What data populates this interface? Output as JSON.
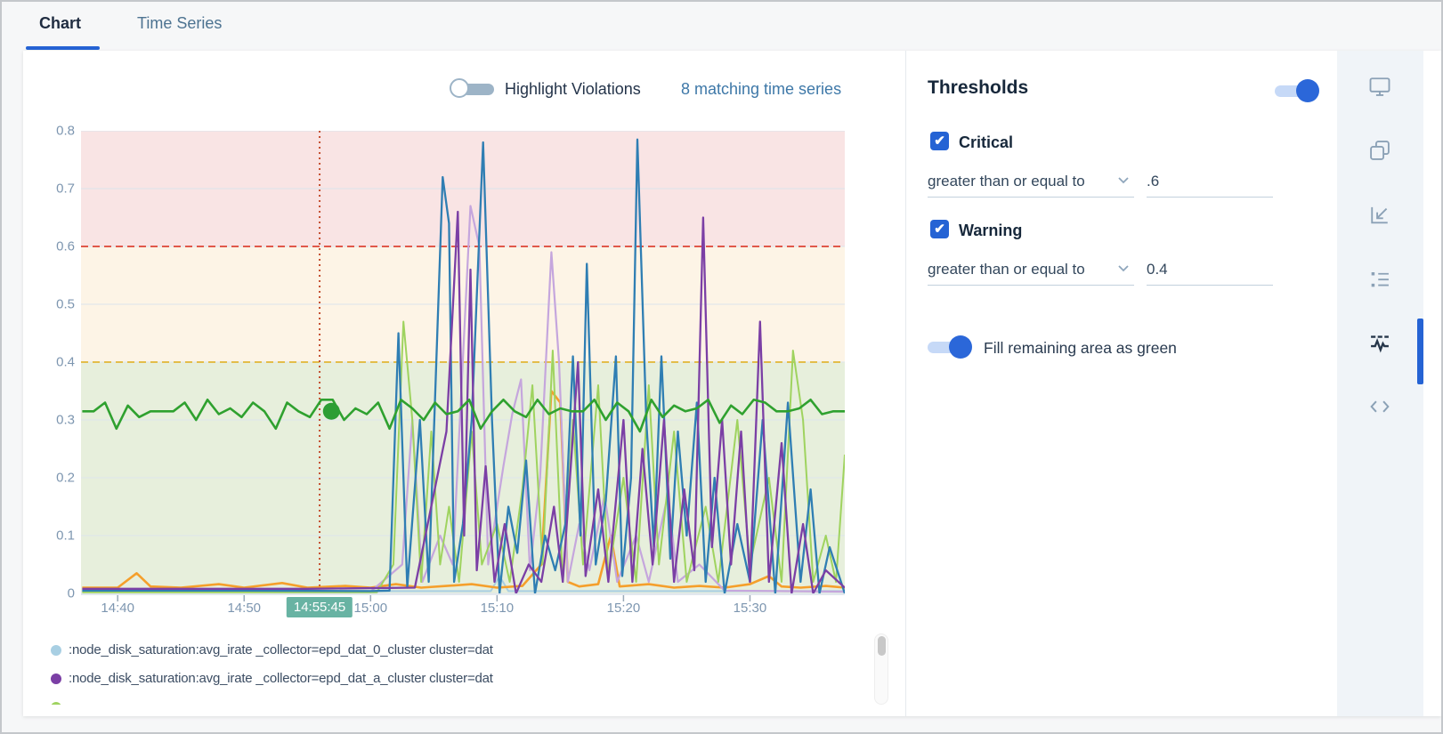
{
  "tabs": {
    "chart": "Chart",
    "time_series": "Time Series"
  },
  "chart_header": {
    "highlight_toggle_label": "Highlight Violations",
    "highlight_toggle_state": "off",
    "matching_link": "8 matching time series"
  },
  "thresholds": {
    "title": "Thresholds",
    "enabled": true,
    "critical": {
      "checked": true,
      "label": "Critical",
      "operator": "greater than or equal to",
      "value": ".6"
    },
    "warning": {
      "checked": true,
      "label": "Warning",
      "operator": "greater than or equal to",
      "value": "0.4"
    },
    "fill_label": "Fill remaining area as green",
    "fill_enabled": true,
    "accent_color": "#2563d4"
  },
  "legend": {
    "items": [
      {
        "label": ":node_disk_saturation:avg_irate _collector=epd_dat_0_cluster cluster=dat",
        "color": "#a8cfe3"
      },
      {
        "label": ":node_disk_saturation:avg_irate _collector=epd_dat_a_cluster cluster=dat",
        "color": "#7b3fa5"
      },
      {
        "label": "",
        "color": "#9fd35f"
      }
    ]
  },
  "sidebar_icons": [
    {
      "name": "monitor-icon",
      "active": false
    },
    {
      "name": "overlap-panels-icon",
      "active": false
    },
    {
      "name": "axes-icon",
      "active": false
    },
    {
      "name": "list-icon",
      "active": false
    },
    {
      "name": "threshold-waveform-icon",
      "active": true
    },
    {
      "name": "code-icon",
      "active": false
    }
  ],
  "chart_data": {
    "type": "line",
    "ylim": [
      0,
      0.8
    ],
    "y_ticks": [
      "0.8",
      "0.7",
      "0.6",
      "0.5",
      "0.4",
      "0.3",
      "0.2",
      "0.1",
      "0"
    ],
    "x_range_min": [
      -2.9,
      57.5
    ],
    "x_axis": {
      "ticks": [
        {
          "label": "14:40",
          "min": 0
        },
        {
          "label": "14:50",
          "min": 10
        },
        {
          "label": "15:00",
          "min": 20
        },
        {
          "label": "15:10",
          "min": 30
        },
        {
          "label": "15:20",
          "min": 40
        },
        {
          "label": "15:30",
          "min": 50
        }
      ],
      "cursor": {
        "label": "14:55:45",
        "min": 15.97,
        "line_color": "#c44f30"
      }
    },
    "grid_color": "#dce5ec",
    "bands": [
      {
        "name": "critical",
        "from": 0.6,
        "to": 0.8,
        "color": "#f9e4e4"
      },
      {
        "name": "warning",
        "from": 0.4,
        "to": 0.6,
        "color": "#fdf4e6"
      },
      {
        "name": "ok",
        "from": 0.0,
        "to": 0.4,
        "color": "#e7efdc"
      }
    ],
    "threshold_lines": [
      {
        "value": 0.6,
        "color": "#e0584a"
      },
      {
        "value": 0.4,
        "color": "#e3bd4a"
      }
    ],
    "marker": {
      "min": 16.9,
      "value": 0.315,
      "color": "#2d9e34",
      "r": 9.5
    },
    "series": [
      {
        "name": "lightblue",
        "color": "#a8cfe3",
        "width": 2,
        "points": [
          [
            -2.8,
            0.004
          ],
          [
            29.5,
            0.004
          ],
          [
            30.2,
            0.03
          ],
          [
            30.9,
            0.004
          ],
          [
            57.5,
            0.004
          ]
        ]
      },
      {
        "name": "orange",
        "color": "#f59f2b",
        "width": 2.6,
        "points": [
          [
            -2.8,
            0.01
          ],
          [
            0,
            0.01
          ],
          [
            1.5,
            0.035
          ],
          [
            2.6,
            0.012
          ],
          [
            5,
            0.01
          ],
          [
            8,
            0.016
          ],
          [
            10,
            0.01
          ],
          [
            13,
            0.018
          ],
          [
            15,
            0.01
          ],
          [
            18,
            0.013
          ],
          [
            20,
            0.01
          ],
          [
            22,
            0.016
          ],
          [
            24,
            0.01
          ],
          [
            26,
            0.013
          ],
          [
            28,
            0.016
          ],
          [
            30,
            0.01
          ],
          [
            32,
            0.013
          ],
          [
            33.5,
            0.05
          ],
          [
            34.3,
            0.35
          ],
          [
            35.0,
            0.33
          ],
          [
            35.6,
            0.02
          ],
          [
            36.5,
            0.012
          ],
          [
            38.0,
            0.016
          ],
          [
            39.0,
            0.1
          ],
          [
            39.7,
            0.012
          ],
          [
            42,
            0.016
          ],
          [
            44,
            0.01
          ],
          [
            46,
            0.013
          ],
          [
            48,
            0.01
          ],
          [
            50,
            0.016
          ],
          [
            51.5,
            0.03
          ],
          [
            52.5,
            0.012
          ],
          [
            54,
            0.01
          ],
          [
            56,
            0.013
          ],
          [
            57.5,
            0.01
          ]
        ]
      },
      {
        "name": "lavender",
        "color": "#c5a6dd",
        "width": 2.2,
        "points": [
          [
            -2.8,
            0.003
          ],
          [
            20,
            0.003
          ],
          [
            22.5,
            0.05
          ],
          [
            23.3,
            0.3
          ],
          [
            24.1,
            0.02
          ],
          [
            25.5,
            0.1
          ],
          [
            26.5,
            0.05
          ],
          [
            27.9,
            0.67
          ],
          [
            28.6,
            0.6
          ],
          [
            29.3,
            0.05
          ],
          [
            30.5,
            0.22
          ],
          [
            31.2,
            0.31
          ],
          [
            31.9,
            0.37
          ],
          [
            32.6,
            0.04
          ],
          [
            33.4,
            0.2
          ],
          [
            34.3,
            0.59
          ],
          [
            34.9,
            0.4
          ],
          [
            35.6,
            0.02
          ],
          [
            36.5,
            0.12
          ],
          [
            37.3,
            0.04
          ],
          [
            38.5,
            0.17
          ],
          [
            39.5,
            0.02
          ],
          [
            41.0,
            0.1
          ],
          [
            42.0,
            0.02
          ],
          [
            43.5,
            0.17
          ],
          [
            44.3,
            0.02
          ],
          [
            46.0,
            0.05
          ],
          [
            48.0,
            0.005
          ],
          [
            57.5,
            0.003
          ]
        ]
      },
      {
        "name": "lightgreen",
        "color": "#9fd35f",
        "width": 2,
        "points": [
          [
            -2.8,
            0.002
          ],
          [
            20.5,
            0.002
          ],
          [
            21.8,
            0.05
          ],
          [
            22.6,
            0.47
          ],
          [
            23.3,
            0.3
          ],
          [
            24.0,
            0.02
          ],
          [
            24.8,
            0.28
          ],
          [
            25.5,
            0.05
          ],
          [
            26.2,
            0.15
          ],
          [
            27.0,
            0.02
          ],
          [
            28.0,
            0.28
          ],
          [
            28.8,
            0.05
          ],
          [
            30.0,
            0.12
          ],
          [
            31.0,
            0.02
          ],
          [
            32.0,
            0.18
          ],
          [
            32.8,
            0.36
          ],
          [
            33.6,
            0.05
          ],
          [
            34.4,
            0.42
          ],
          [
            35.2,
            0.02
          ],
          [
            36.0,
            0.3
          ],
          [
            36.8,
            0.05
          ],
          [
            38.0,
            0.36
          ],
          [
            38.8,
            0.03
          ],
          [
            40.0,
            0.2
          ],
          [
            41.0,
            0.02
          ],
          [
            42.0,
            0.36
          ],
          [
            42.8,
            0.05
          ],
          [
            44.0,
            0.28
          ],
          [
            45.0,
            0.02
          ],
          [
            46.5,
            0.15
          ],
          [
            47.5,
            0.02
          ],
          [
            49.0,
            0.3
          ],
          [
            50.0,
            0.05
          ],
          [
            51.5,
            0.2
          ],
          [
            52.5,
            0.02
          ],
          [
            53.4,
            0.42
          ],
          [
            54.2,
            0.3
          ],
          [
            55.0,
            0.02
          ],
          [
            56.0,
            0.1
          ],
          [
            56.8,
            0.02
          ],
          [
            57.5,
            0.24
          ]
        ]
      },
      {
        "name": "blue",
        "color": "#2f7eb3",
        "width": 2.3,
        "points": [
          [
            -2.8,
            0.005
          ],
          [
            10,
            0.005
          ],
          [
            20,
            0.004
          ],
          [
            21.5,
            0.005
          ],
          [
            22.2,
            0.45
          ],
          [
            22.9,
            0.01
          ],
          [
            23.9,
            0.3
          ],
          [
            24.6,
            0.02
          ],
          [
            25.7,
            0.72
          ],
          [
            26.2,
            0.64
          ],
          [
            26.6,
            0.02
          ],
          [
            27.3,
            0.12
          ],
          [
            28.0,
            0.3
          ],
          [
            28.9,
            0.78
          ],
          [
            29.6,
            0.3
          ],
          [
            30.2,
            0.0
          ],
          [
            30.9,
            0.15
          ],
          [
            31.6,
            0.07
          ],
          [
            32.3,
            0.23
          ],
          [
            33.0,
            0.0
          ],
          [
            33.8,
            0.1
          ],
          [
            34.6,
            0.04
          ],
          [
            35.4,
            0.12
          ],
          [
            36.0,
            0.41
          ],
          [
            36.6,
            0.1
          ],
          [
            37.1,
            0.57
          ],
          [
            37.8,
            0.05
          ],
          [
            38.6,
            0.16
          ],
          [
            39.4,
            0.41
          ],
          [
            39.9,
            0.03
          ],
          [
            40.6,
            0.2
          ],
          [
            41.1,
            0.785
          ],
          [
            41.8,
            0.3
          ],
          [
            42.4,
            0.08
          ],
          [
            43.0,
            0.41
          ],
          [
            43.7,
            0.06
          ],
          [
            44.3,
            0.28
          ],
          [
            45.0,
            0.1
          ],
          [
            45.8,
            0.33
          ],
          [
            46.5,
            0.02
          ],
          [
            47.2,
            0.2
          ],
          [
            48.0,
            0.0
          ],
          [
            49.0,
            0.12
          ],
          [
            50.0,
            0.02
          ],
          [
            51.0,
            0.3
          ],
          [
            52.0,
            0.0
          ],
          [
            53.0,
            0.33
          ],
          [
            54.0,
            0.02
          ],
          [
            54.8,
            0.18
          ],
          [
            55.5,
            0.0
          ],
          [
            56.3,
            0.08
          ],
          [
            57.5,
            0.0
          ]
        ]
      },
      {
        "name": "purple",
        "color": "#7b3fa5",
        "width": 2.3,
        "points": [
          [
            -2.8,
            0.008
          ],
          [
            15,
            0.008
          ],
          [
            23.5,
            0.01
          ],
          [
            26.0,
            0.28
          ],
          [
            26.9,
            0.66
          ],
          [
            27.4,
            0.1
          ],
          [
            27.9,
            0.56
          ],
          [
            28.4,
            0.04
          ],
          [
            29.1,
            0.22
          ],
          [
            29.8,
            0.02
          ],
          [
            30.6,
            0.12
          ],
          [
            31.5,
            0.0
          ],
          [
            32.5,
            0.05
          ],
          [
            33.5,
            0.02
          ],
          [
            34.5,
            0.15
          ],
          [
            35.2,
            0.02
          ],
          [
            36.4,
            0.4
          ],
          [
            37.0,
            0.03
          ],
          [
            38.0,
            0.18
          ],
          [
            38.8,
            0.02
          ],
          [
            40.0,
            0.3
          ],
          [
            40.7,
            0.02
          ],
          [
            41.5,
            0.25
          ],
          [
            42.3,
            0.05
          ],
          [
            43.2,
            0.3
          ],
          [
            44.0,
            0.02
          ],
          [
            44.8,
            0.18
          ],
          [
            45.6,
            0.04
          ],
          [
            46.3,
            0.65
          ],
          [
            47.0,
            0.08
          ],
          [
            47.8,
            0.3
          ],
          [
            48.5,
            0.05
          ],
          [
            49.3,
            0.28
          ],
          [
            50.0,
            0.02
          ],
          [
            50.8,
            0.47
          ],
          [
            51.5,
            0.02
          ],
          [
            52.5,
            0.26
          ],
          [
            53.3,
            0.0
          ],
          [
            54.2,
            0.12
          ],
          [
            55.0,
            0.0
          ],
          [
            56.0,
            0.04
          ],
          [
            57.5,
            0.01
          ]
        ]
      },
      {
        "name": "green",
        "color": "#2fa12f",
        "width": 2.6,
        "x_start": -2.8,
        "x_step": 0.9,
        "values": [
          0.315,
          0.315,
          0.33,
          0.285,
          0.325,
          0.305,
          0.315,
          0.315,
          0.315,
          0.33,
          0.3,
          0.335,
          0.31,
          0.32,
          0.305,
          0.33,
          0.315,
          0.285,
          0.33,
          0.315,
          0.305,
          0.335,
          0.335,
          0.3,
          0.32,
          0.31,
          0.33,
          0.285,
          0.335,
          0.32,
          0.3,
          0.33,
          0.31,
          0.315,
          0.335,
          0.285,
          0.315,
          0.335,
          0.315,
          0.305,
          0.335,
          0.31,
          0.32,
          0.315,
          0.315,
          0.335,
          0.3,
          0.33,
          0.315,
          0.28,
          0.335,
          0.305,
          0.325,
          0.315,
          0.32,
          0.335,
          0.295,
          0.325,
          0.31,
          0.335,
          0.33,
          0.315,
          0.315,
          0.32,
          0.335,
          0.31,
          0.315,
          0.315
        ]
      }
    ]
  }
}
